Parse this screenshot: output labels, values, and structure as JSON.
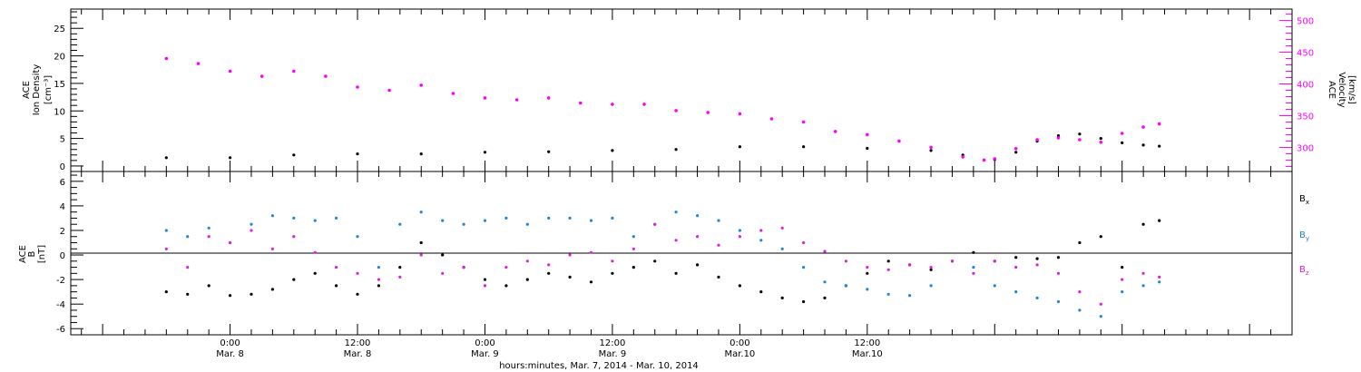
{
  "colors": {
    "density": "#000000",
    "velocity": "#ff00ff",
    "bx": "#000000",
    "by": "#1f86d9",
    "bz": "#e01ee0",
    "axis": "#000000"
  },
  "chart_data": [
    {
      "type": "scatter",
      "panel": "top",
      "left_axis_label": [
        "ACE",
        "Ion Density",
        "[cm⁻³]"
      ],
      "right_axis_label": [
        "ACE",
        "Velocity",
        "[km/s]"
      ],
      "left_ticks": [
        "0",
        "5",
        "10",
        "15",
        "20",
        "25"
      ],
      "right_ticks": [
        "300",
        "350",
        "400",
        "450",
        "500"
      ],
      "ylim_left": [
        -1,
        28.5
      ],
      "ylim_right": [
        262,
        518
      ],
      "series": [
        {
          "name": "Ion Density",
          "axis": "left",
          "x": [
            -6,
            0,
            6,
            12,
            18,
            24,
            30,
            36,
            42,
            48,
            54,
            60,
            66,
            69,
            72,
            74,
            76,
            78,
            80,
            82,
            84,
            86,
            87.5
          ],
          "y": [
            1.5,
            1.5,
            2,
            2.2,
            2.2,
            2.5,
            2.6,
            2.8,
            3,
            3.5,
            3.5,
            3.2,
            2.8,
            2,
            1.2,
            2.5,
            4.5,
            5.5,
            5.8,
            5,
            4.2,
            3.8,
            3.6
          ]
        },
        {
          "name": "Velocity",
          "axis": "right",
          "x": [
            -6,
            -3,
            0,
            3,
            6,
            9,
            12,
            15,
            18,
            21,
            24,
            27,
            30,
            33,
            36,
            39,
            42,
            45,
            48,
            51,
            54,
            57,
            60,
            63,
            66,
            69,
            71,
            72,
            74,
            76,
            78,
            80,
            82,
            84,
            86,
            87.5
          ],
          "y": [
            440,
            432,
            420,
            412,
            420,
            412,
            395,
            390,
            398,
            385,
            378,
            375,
            378,
            370,
            368,
            368,
            358,
            355,
            353,
            345,
            340,
            325,
            320,
            310,
            300,
            285,
            280,
            282,
            298,
            312,
            315,
            312,
            308,
            322,
            332,
            337
          ]
        }
      ]
    },
    {
      "type": "scatter",
      "panel": "bottom",
      "left_axis_label": [
        "ACE",
        "B",
        "[nT]"
      ],
      "left_ticks": [
        "-6",
        "-4",
        "-2",
        "0",
        "2",
        "4",
        "6"
      ],
      "ylim": [
        -6.5,
        6.8
      ],
      "legend": [
        {
          "label": "B",
          "sub": "x"
        },
        {
          "label": "B",
          "sub": "y"
        },
        {
          "label": "B",
          "sub": "z"
        }
      ],
      "series": [
        {
          "name": "Bx",
          "x": [
            -6,
            -4,
            -2,
            0,
            2,
            4,
            6,
            8,
            10,
            12,
            14,
            16,
            18,
            20,
            22,
            24,
            26,
            28,
            30,
            32,
            34,
            36,
            38,
            40,
            42,
            44,
            46,
            48,
            50,
            52,
            54,
            56,
            58,
            60,
            62,
            64,
            66,
            68,
            70,
            72,
            74,
            76,
            78,
            80,
            82,
            84,
            86,
            87.5
          ],
          "y": [
            -3,
            -3.2,
            -2.5,
            -3.3,
            -3.2,
            -2.8,
            -2,
            -1.5,
            -2.5,
            -3.2,
            -2.5,
            -1,
            1,
            0,
            -1,
            -2,
            -2.5,
            -2,
            -1.5,
            -1.8,
            -2.2,
            -1.5,
            -1,
            -0.5,
            -1.5,
            -0.8,
            -1.8,
            -2.5,
            -3,
            -3.5,
            -3.8,
            -3.5,
            -2.5,
            -1.5,
            -0.5,
            -0.8,
            -1.2,
            -0.5,
            0.2,
            -0.5,
            -0.2,
            -0.3,
            -0.2,
            1,
            1.5,
            -1,
            2.5,
            2.8
          ]
        },
        {
          "name": "By",
          "x": [
            -6,
            -4,
            -2,
            0,
            2,
            4,
            6,
            8,
            10,
            12,
            14,
            16,
            18,
            20,
            22,
            24,
            26,
            28,
            30,
            32,
            34,
            36,
            38,
            40,
            42,
            44,
            46,
            48,
            50,
            52,
            54,
            56,
            58,
            60,
            62,
            64,
            66,
            68,
            70,
            72,
            74,
            76,
            78,
            80,
            82,
            84,
            86,
            87.5
          ],
          "y": [
            2,
            1.5,
            2.2,
            1,
            2.5,
            3.2,
            3,
            2.8,
            3,
            1.5,
            -1,
            2.5,
            3.5,
            2.8,
            2.5,
            2.8,
            3,
            2.5,
            3,
            3,
            2.8,
            3,
            1.5,
            2.5,
            3.5,
            3.2,
            2.8,
            2,
            1.2,
            0.5,
            -1,
            -2.2,
            -2.5,
            -2.8,
            -3.2,
            -3.3,
            -2.5,
            -0.5,
            -1,
            -2.5,
            -3,
            -3.5,
            -3.8,
            -4.5,
            -5,
            -3,
            -2.5,
            -2.2
          ]
        },
        {
          "name": "Bz",
          "x": [
            -6,
            -4,
            -2,
            0,
            2,
            4,
            6,
            8,
            10,
            12,
            14,
            16,
            18,
            20,
            22,
            24,
            26,
            28,
            30,
            32,
            34,
            36,
            38,
            40,
            42,
            44,
            46,
            48,
            50,
            52,
            54,
            56,
            58,
            60,
            62,
            64,
            66,
            68,
            70,
            72,
            74,
            76,
            78,
            80,
            82,
            84,
            86,
            87.5
          ],
          "y": [
            0.5,
            -1,
            1.5,
            1,
            2,
            0.5,
            1.5,
            0.2,
            -1,
            -1.5,
            -2,
            -1.8,
            0,
            -1.5,
            -1,
            -2.5,
            -1,
            -0.5,
            -0.8,
            0,
            0.2,
            -0.5,
            0.5,
            2.5,
            1.2,
            1.5,
            0.8,
            1.5,
            2,
            2.2,
            1,
            0.3,
            -0.5,
            -1,
            -1.2,
            -0.8,
            -1,
            -0.5,
            -1.5,
            -0.5,
            -1,
            -0.8,
            -1.5,
            -3,
            -4,
            -2,
            -1.5,
            -1.8
          ]
        }
      ]
    }
  ],
  "x_axis": {
    "xlim": [
      -15,
      100
    ],
    "ticks": [
      {
        "time": "0:00",
        "date": "Mar. 8",
        "x": 0
      },
      {
        "time": "12:00",
        "date": "Mar. 8",
        "x": 12
      },
      {
        "time": "0:00",
        "date": "Mar. 9",
        "x": 24
      },
      {
        "time": "12:00",
        "date": "Mar. 9",
        "x": 36
      },
      {
        "time": "0:00",
        "date": "Mar.10",
        "x": 48
      },
      {
        "time": "12:00",
        "date": "Mar.10",
        "x": 60
      }
    ],
    "major_every_hours": 12,
    "minor_every_hours": 2,
    "title": "hours:minutes, Mar.  7, 2014 - Mar. 10, 2014"
  }
}
